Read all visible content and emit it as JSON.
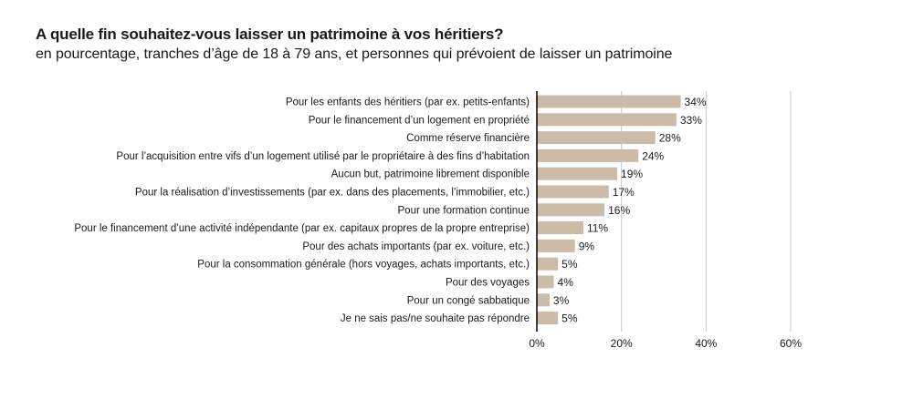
{
  "chart_data": {
    "type": "bar",
    "orientation": "horizontal",
    "title": "A quelle fin souhaitez-vous laisser un patrimoine à vos héritiers?",
    "subtitle": "en pourcentage, tranches d’âge de 18 à 79 ans, et personnes qui prévoient de laisser un patrimoine",
    "categories": [
      "Pour les enfants des héritiers (par ex. petits-enfants)",
      "Pour le financement d’un logement en propriété",
      "Comme réserve financière",
      "Pour l’acquisition entre vifs d’un logement utilisé par le propriétaire à des fins d’habitation",
      "Aucun but, patrimoine librement disponible",
      "Pour la réalisation d’investissements (par ex. dans des placements, l’immobilier, etc.)",
      "Pour une formation continue",
      "Pour le financement d’une activité indépendante (par ex. capitaux propres de la propre entreprise)",
      "Pour des achats importants (par ex. voiture, etc.)",
      "Pour la consommation générale (hors voyages, achats importants, etc.)",
      "Pour des voyages",
      "Pour un congé sabbatique",
      "Je ne sais pas/ne souhaite pas répondre"
    ],
    "values": [
      34,
      33,
      28,
      24,
      19,
      17,
      16,
      11,
      9,
      5,
      4,
      3,
      5
    ],
    "value_labels": [
      "34%",
      "33%",
      "28%",
      "24%",
      "19%",
      "17%",
      "16%",
      "11%",
      "9%",
      "5%",
      "4%",
      "3%",
      "5%"
    ],
    "xlim": [
      0,
      60
    ],
    "xticks": [
      0,
      20,
      40,
      60
    ],
    "xtick_labels": [
      "0%",
      "20%",
      "40%",
      "60%"
    ],
    "grid": true,
    "xlabel": "",
    "ylabel": "",
    "colors": {
      "bar": "#cdbba9",
      "grid": "#c8c8c8",
      "axis": "#000000"
    }
  }
}
